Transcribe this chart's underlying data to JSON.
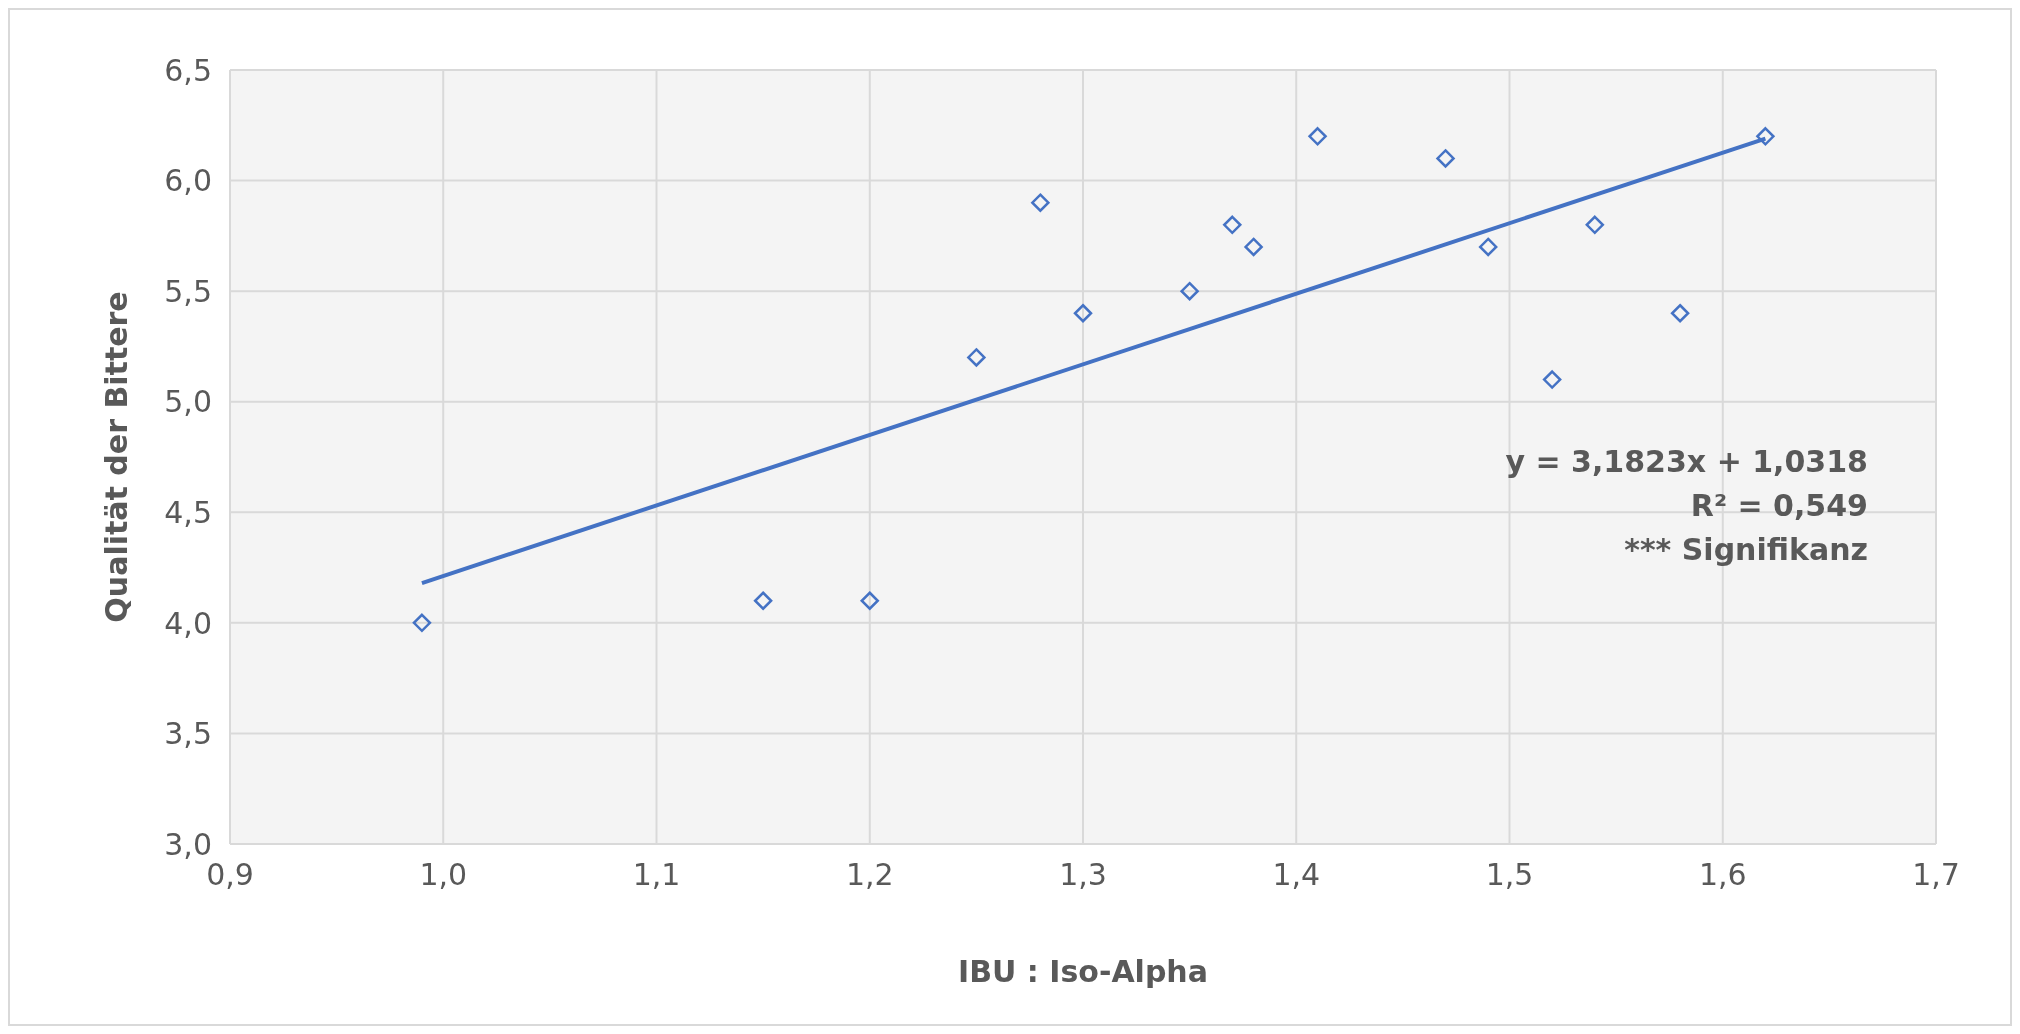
{
  "chart_data": {
    "type": "scatter",
    "xlabel": "IBU : Iso-Alpha",
    "ylabel": "Qualität der Bittere",
    "xlim": [
      0.9,
      1.7
    ],
    "xticks": [
      {
        "value": 0.9,
        "label": "0,9"
      },
      {
        "value": 1.0,
        "label": "1,0"
      },
      {
        "value": 1.1,
        "label": "1,1"
      },
      {
        "value": 1.2,
        "label": "1,2"
      },
      {
        "value": 1.3,
        "label": "1,3"
      },
      {
        "value": 1.4,
        "label": "1,4"
      },
      {
        "value": 1.5,
        "label": "1,5"
      },
      {
        "value": 1.6,
        "label": "1,6"
      },
      {
        "value": 1.7,
        "label": "1,7"
      }
    ],
    "ylim": [
      3.0,
      6.5
    ],
    "yticks": [
      {
        "value": 3.0,
        "label": "3,0"
      },
      {
        "value": 3.5,
        "label": "3,5"
      },
      {
        "value": 4.0,
        "label": "4,0"
      },
      {
        "value": 4.5,
        "label": "4,5"
      },
      {
        "value": 5.0,
        "label": "5,0"
      },
      {
        "value": 5.5,
        "label": "5,5"
      },
      {
        "value": 6.0,
        "label": "6,0"
      },
      {
        "value": 6.5,
        "label": "6,5"
      }
    ],
    "grid": true,
    "series": [
      {
        "marker": "diamond",
        "color": "#4472c4",
        "x": [
          0.99,
          1.15,
          1.2,
          1.25,
          1.28,
          1.3,
          1.35,
          1.37,
          1.38,
          1.41,
          1.47,
          1.49,
          1.52,
          1.54,
          1.58,
          1.62
        ],
        "values": [
          4.0,
          4.1,
          4.1,
          5.2,
          5.9,
          5.4,
          5.5,
          5.8,
          5.7,
          6.2,
          6.1,
          5.7,
          5.1,
          5.8,
          5.4,
          6.2
        ]
      },
      {
        "type": "line",
        "marker": "none",
        "color": "#4472c4",
        "x": [
          0.99,
          1.62
        ],
        "values": [
          4.18,
          6.19
        ]
      }
    ],
    "annotations": [
      "y = 3,1823x + 1,0318",
      "R² = 0,549",
      "*** Signifikanz"
    ]
  }
}
